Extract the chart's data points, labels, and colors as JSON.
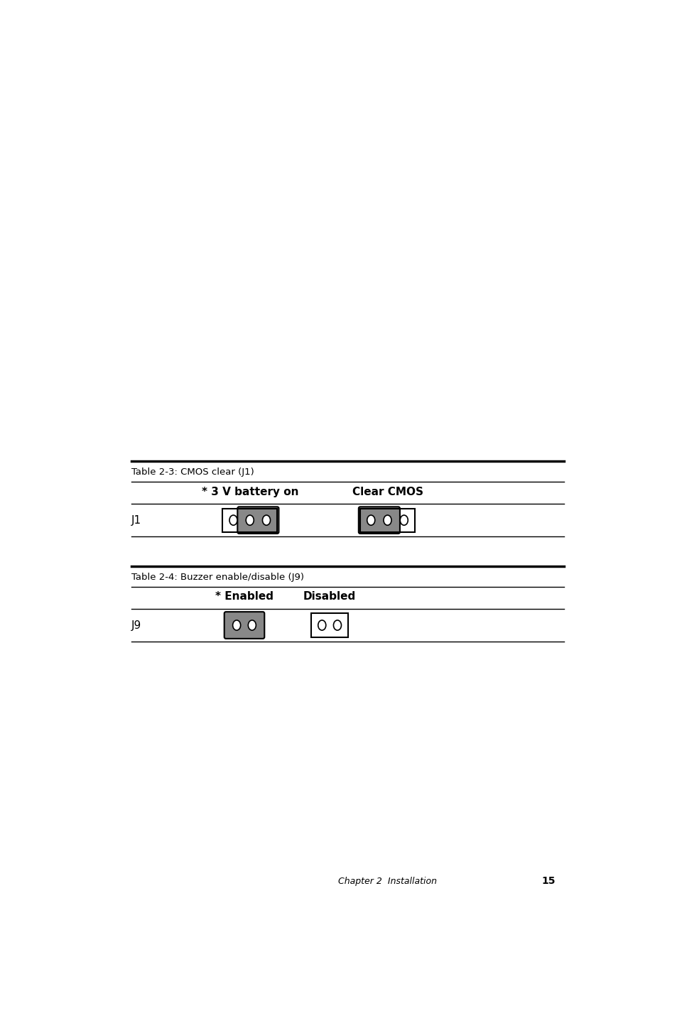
{
  "bg_color": "#ffffff",
  "page_width": 9.54,
  "page_height": 14.3,
  "table1_title": "Table 2-3: CMOS clear (J1)",
  "table1_col1": "* 3 V battery on",
  "table1_col2": "Clear CMOS",
  "table1_row_label": "J1",
  "table2_title": "Table 2-4: Buzzer enable/disable (J9)",
  "table2_col1": "* Enabled",
  "table2_col2": "Disabled",
  "table2_row_label": "J9",
  "footer_text": "Chapter 2  Installation",
  "footer_page": "15",
  "gray_color": "#888888",
  "black": "#000000",
  "white": "#ffffff"
}
